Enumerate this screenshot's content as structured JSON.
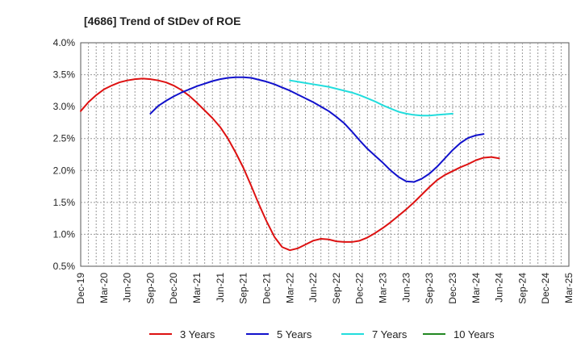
{
  "chart_data": {
    "type": "line",
    "title": "[4686]  Trend of StDev of ROE",
    "xlabel": "",
    "ylabel": "",
    "ylim": [
      0.5,
      4.0
    ],
    "y_ticks": [
      0.5,
      1.0,
      1.5,
      2.0,
      2.5,
      3.0,
      3.5,
      4.0
    ],
    "y_tick_labels": [
      "0.5%",
      "1.0%",
      "1.5%",
      "2.0%",
      "2.5%",
      "3.0%",
      "3.5%",
      "4.0%"
    ],
    "x_tick_labels": [
      "Dec-19",
      "Mar-20",
      "Jun-20",
      "Sep-20",
      "Dec-20",
      "Mar-21",
      "Jun-21",
      "Sep-21",
      "Dec-21",
      "Mar-22",
      "Jun-22",
      "Sep-22",
      "Dec-22",
      "Mar-23",
      "Jun-23",
      "Sep-23",
      "Dec-23",
      "Mar-24",
      "Jun-24",
      "Sep-24",
      "Dec-24",
      "Mar-25"
    ],
    "grid": true,
    "legend_position": "bottom",
    "series": [
      {
        "name": "3 Years",
        "color": "#dd1111",
        "start_index": 0,
        "values": [
          2.93,
          3.07,
          3.18,
          3.27,
          3.33,
          3.38,
          3.41,
          3.43,
          3.44,
          3.43,
          3.41,
          3.38,
          3.33,
          3.26,
          3.17,
          3.06,
          2.94,
          2.82,
          2.68,
          2.5,
          2.28,
          2.04,
          1.76,
          1.47,
          1.2,
          0.96,
          0.8,
          0.75,
          0.78,
          0.84,
          0.9,
          0.93,
          0.92,
          0.89,
          0.88,
          0.88,
          0.9,
          0.95,
          1.02,
          1.1,
          1.19,
          1.29,
          1.39,
          1.5,
          1.62,
          1.74,
          1.85,
          1.93,
          1.99,
          2.05,
          2.1,
          2.16,
          2.2,
          2.21,
          2.19
        ]
      },
      {
        "name": "5 Years",
        "color": "#1111cc",
        "start_index": 9,
        "values": [
          2.89,
          3.01,
          3.09,
          3.16,
          3.22,
          3.27,
          3.32,
          3.36,
          3.4,
          3.43,
          3.45,
          3.46,
          3.46,
          3.45,
          3.42,
          3.39,
          3.35,
          3.3,
          3.25,
          3.19,
          3.13,
          3.07,
          3.0,
          2.93,
          2.84,
          2.74,
          2.61,
          2.47,
          2.34,
          2.23,
          2.12,
          2.0,
          1.9,
          1.83,
          1.82,
          1.87,
          1.95,
          2.06,
          2.19,
          2.32,
          2.43,
          2.51,
          2.55,
          2.57
        ]
      },
      {
        "name": "7 Years",
        "color": "#22dddd",
        "start_index": 27,
        "values": [
          3.41,
          3.39,
          3.37,
          3.35,
          3.33,
          3.31,
          3.28,
          3.25,
          3.22,
          3.18,
          3.13,
          3.08,
          3.02,
          2.97,
          2.92,
          2.89,
          2.87,
          2.86,
          2.86,
          2.87,
          2.88,
          2.89
        ]
      },
      {
        "name": "10 Years",
        "color": "#228822",
        "start_index": 0,
        "values": []
      }
    ]
  }
}
